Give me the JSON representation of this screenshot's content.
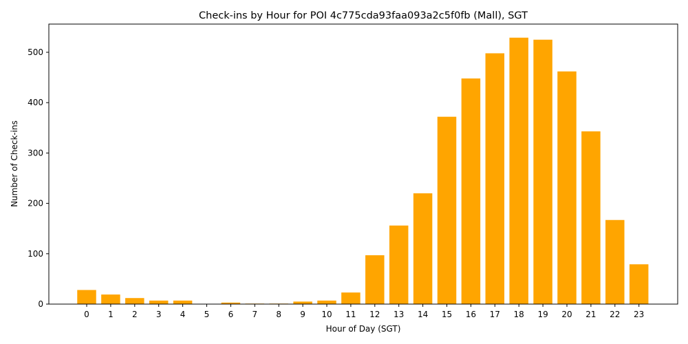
{
  "chart_data": {
    "type": "bar",
    "title": "Check-ins by Hour for POI 4c775cda93faa093a2c5f0fb (Mall), SGT",
    "xlabel": "Hour of Day (SGT)",
    "ylabel": "Number of Check-ins",
    "categories": [
      "0",
      "1",
      "2",
      "3",
      "4",
      "5",
      "6",
      "7",
      "8",
      "9",
      "10",
      "11",
      "12",
      "13",
      "14",
      "15",
      "16",
      "17",
      "18",
      "19",
      "20",
      "21",
      "22",
      "23"
    ],
    "values": [
      28,
      19,
      12,
      7,
      7,
      0,
      3,
      1,
      1,
      5,
      7,
      23,
      97,
      156,
      220,
      372,
      448,
      498,
      529,
      525,
      462,
      343,
      167,
      79
    ],
    "ylim": [
      0,
      556
    ],
    "yticks": [
      0,
      100,
      200,
      300,
      400,
      500
    ],
    "bar_color": "#ffa500",
    "grid": false,
    "legend": "none"
  }
}
